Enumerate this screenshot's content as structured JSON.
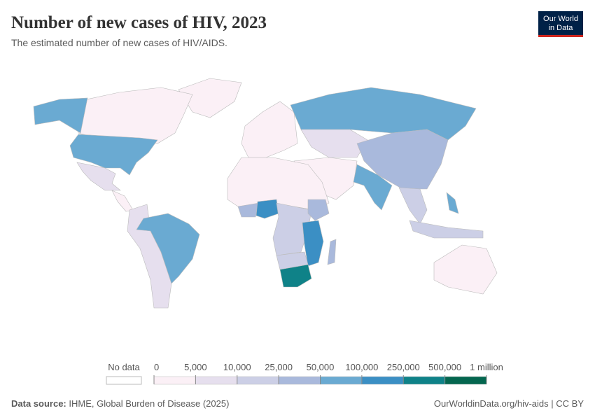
{
  "header": {
    "title": "Number of new cases of HIV, 2023",
    "subtitle": "The estimated number of new cases of HIV/AIDS.",
    "logo": [
      "Our World",
      "in Data"
    ]
  },
  "legend": {
    "no_data": "No data",
    "ticks": [
      0,
      {
        "value": 5000,
        "label": "5,000"
      },
      {
        "value": 10000,
        "label": "10,000"
      },
      {
        "value": 25000,
        "label": "25,000"
      },
      {
        "value": 50000,
        "label": "50,000"
      },
      {
        "value": 100000,
        "label": "100,000"
      },
      {
        "value": 250000,
        "label": "250,000"
      },
      {
        "value": 500000,
        "label": "500,000"
      },
      {
        "value": 1000000,
        "label": "1 million"
      }
    ],
    "colors": [
      "#fbf0f6",
      "#e6dfee",
      "#cccfe6",
      "#a9b9dc",
      "#6aaad2",
      "#3b8fc4",
      "#0f8288",
      "#04664f"
    ]
  },
  "footer": {
    "source_label": "Data source:",
    "source": "IHME, Global Burden of Disease (2025)",
    "url": "OurWorldinData.org/hiv-aids | CC BY"
  }
}
